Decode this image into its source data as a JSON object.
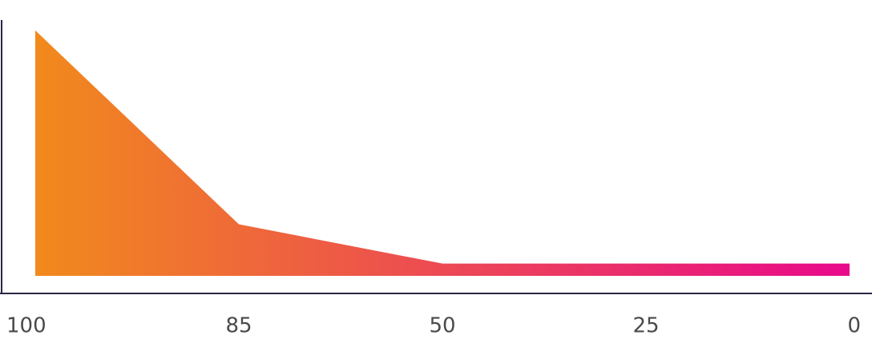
{
  "chart_data": {
    "type": "area",
    "categories": [
      "100",
      "85",
      "50",
      "25",
      "0"
    ],
    "values": [
      100,
      21,
      5,
      5,
      5
    ],
    "gradient": [
      "#f18a1c",
      "#e8098b"
    ],
    "ylim": [
      0,
      100
    ],
    "axis_color": "#2b2545"
  }
}
